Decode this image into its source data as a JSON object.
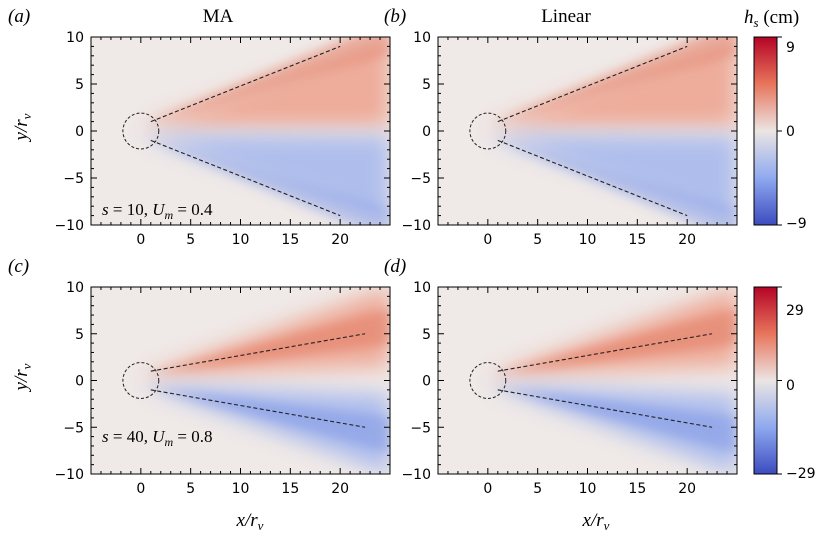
{
  "chart_data": [
    {
      "type": "heatmap",
      "panel_label": "(a)",
      "title": "MA",
      "xlabel": "x/r_v",
      "ylabel": "y/r_v",
      "xlim": [
        -5,
        25
      ],
      "ylim": [
        -10,
        10
      ],
      "xticks": [
        0,
        5,
        10,
        15,
        20
      ],
      "yticks": [
        -10,
        -5,
        0,
        5,
        10
      ],
      "colorbar": {
        "label": "h_s (cm)",
        "range": [
          -9,
          9
        ],
        "ticks": [
          9,
          0,
          -9
        ]
      },
      "wake_lines": [
        {
          "x": [
            1,
            20
          ],
          "y": [
            1,
            9
          ]
        },
        {
          "x": [
            1,
            20
          ],
          "y": [
            -1,
            -9
          ]
        }
      ],
      "annotation": {
        "s": 10,
        "U_m": 0.4
      }
    },
    {
      "type": "heatmap",
      "panel_label": "(b)",
      "title": "Linear",
      "xlabel": "",
      "ylabel": "",
      "xlim": [
        -5,
        25
      ],
      "ylim": [
        -10,
        10
      ],
      "xticks": [
        0,
        5,
        10,
        15,
        20
      ],
      "yticks": [
        -10,
        -5,
        0,
        5,
        10
      ],
      "colorbar": {
        "label": "h_s (cm)",
        "range": [
          -9,
          9
        ],
        "ticks": [
          9,
          0,
          -9
        ]
      },
      "wake_lines": [
        {
          "x": [
            1,
            20
          ],
          "y": [
            1,
            9
          ]
        },
        {
          "x": [
            1,
            20
          ],
          "y": [
            -1,
            -9
          ]
        }
      ]
    },
    {
      "type": "heatmap",
      "panel_label": "(c)",
      "title": "",
      "xlabel": "x/r_v",
      "ylabel": "y/r_v",
      "xlim": [
        -5,
        25
      ],
      "ylim": [
        -10,
        10
      ],
      "xticks": [
        0,
        5,
        10,
        15,
        20
      ],
      "yticks": [
        -10,
        -5,
        0,
        5,
        10
      ],
      "colorbar": {
        "label": "",
        "range": [
          -29,
          29
        ],
        "ticks": [
          29,
          0,
          -29
        ]
      },
      "wake_lines": [
        {
          "x": [
            1,
            22.5
          ],
          "y": [
            1,
            5
          ]
        },
        {
          "x": [
            1,
            22.5
          ],
          "y": [
            -1,
            -5
          ]
        }
      ],
      "annotation": {
        "s": 40,
        "U_m": 0.8
      }
    },
    {
      "type": "heatmap",
      "panel_label": "(d)",
      "title": "",
      "xlabel": "x/r_v",
      "ylabel": "",
      "xlim": [
        -5,
        25
      ],
      "ylim": [
        -10,
        10
      ],
      "xticks": [
        0,
        5,
        10,
        15,
        20
      ],
      "yticks": [
        -10,
        -5,
        0,
        5,
        10
      ],
      "colorbar": {
        "label": "",
        "range": [
          -29,
          29
        ],
        "ticks": [
          29,
          0,
          -29
        ]
      },
      "wake_lines": [
        {
          "x": [
            1,
            22.5
          ],
          "y": [
            1,
            5
          ]
        },
        {
          "x": [
            1,
            22.5
          ],
          "y": [
            -1,
            -5
          ]
        }
      ]
    }
  ],
  "text": {
    "title_ma": "MA",
    "title_linear": "Linear",
    "label_a": "(a)",
    "label_b": "(b)",
    "label_c": "(c)",
    "label_d": "(d)",
    "ann_top": "s = 10, U_m = 0.4",
    "ann_bottom": "s = 40, U_m = 0.8",
    "xlabel": "x/r_v",
    "ylabel": "y/r_v",
    "cbar_label": "h_s (cm)",
    "cbar_top_max": "9",
    "cbar_top_mid": "0",
    "cbar_top_min": "−9",
    "cbar_bottom_max": "29",
    "cbar_bottom_mid": "0",
    "cbar_bottom_min": "−29"
  },
  "colors": {
    "positive": "#b40426",
    "neutral": "#efe9e7",
    "negative": "#3b4cc0",
    "wake_line": "#222222"
  }
}
